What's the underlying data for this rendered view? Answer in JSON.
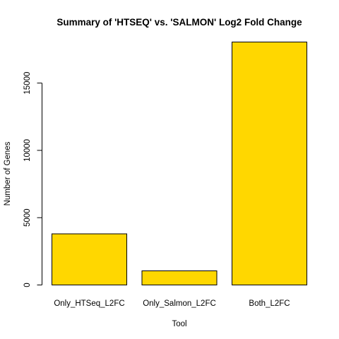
{
  "chart_data": {
    "type": "bar",
    "title": "Summary of 'HTSEQ' vs. 'SALMON' Log2 Fold Change",
    "xlabel": "Tool",
    "ylabel": "Number of Genes",
    "categories": [
      "Only_HTSeq_L2FC",
      "Only_Salmon_L2FC",
      "Both_L2FC"
    ],
    "values": [
      3800,
      1050,
      18050
    ],
    "yticks": [
      0,
      5000,
      10000,
      15000
    ],
    "ylim": [
      0,
      18050
    ],
    "bar_color": "#FFD700",
    "grid": false,
    "legend": "none"
  }
}
